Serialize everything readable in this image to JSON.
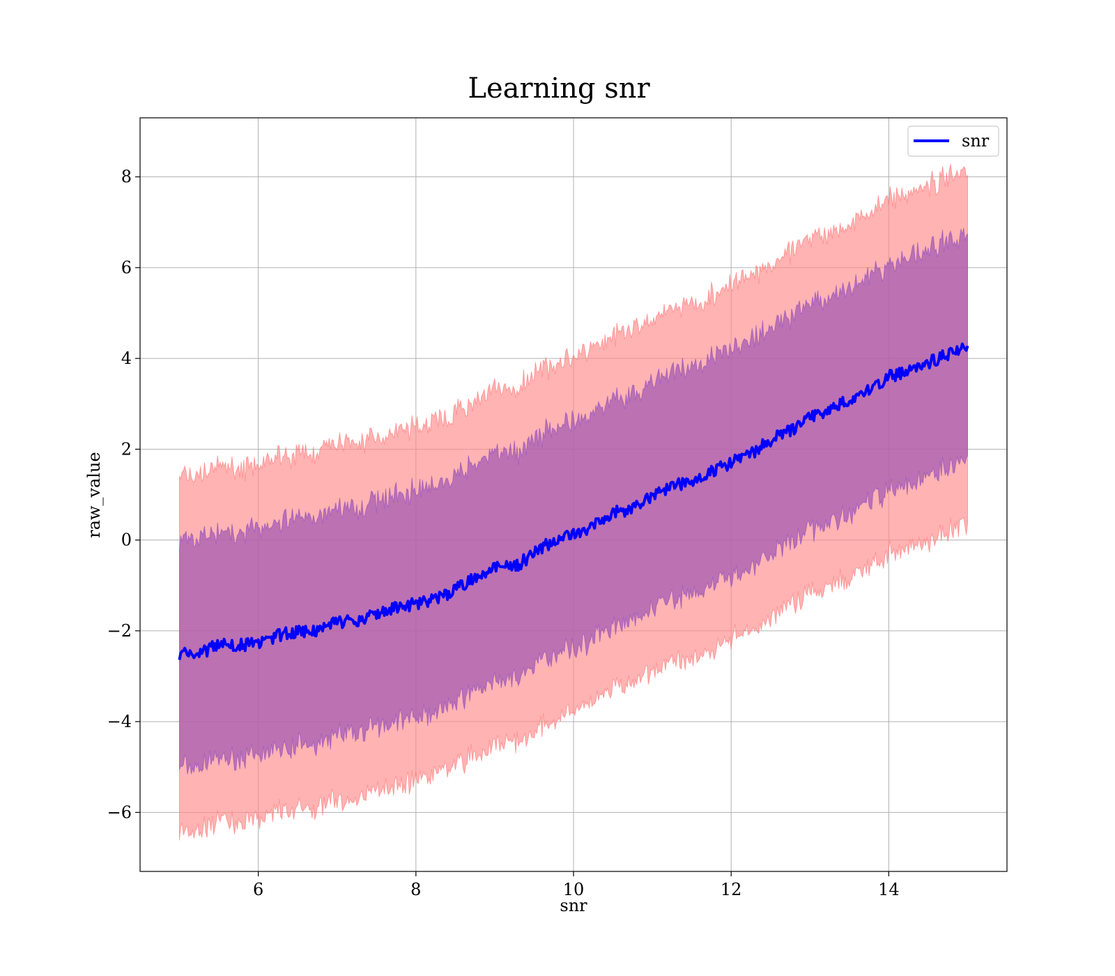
{
  "chart_data": {
    "type": "line",
    "title": "Learning snr",
    "xlabel": "snr",
    "ylabel": "raw_value",
    "xlim": [
      4.5,
      15.5
    ],
    "ylim": [
      -7.3,
      9.3
    ],
    "x_ticks": [
      6,
      8,
      10,
      12,
      14
    ],
    "y_ticks": [
      -6,
      -4,
      -2,
      0,
      2,
      4,
      6,
      8
    ],
    "x_tick_labels": [
      "6",
      "8",
      "10",
      "12",
      "14"
    ],
    "y_tick_labels": [
      "−6",
      "−4",
      "−2",
      "0",
      "2",
      "4",
      "6",
      "8"
    ],
    "grid": true,
    "legend_position": "top-right",
    "colors": {
      "line": "#0000ff",
      "outer_band": "#ff8a8a",
      "inner_band": "#a055b4",
      "grid": "#b0b0b0"
    },
    "series": [
      {
        "name": "snr",
        "x": [
          5.0,
          5.25,
          5.5,
          5.75,
          6.0,
          6.25,
          6.5,
          6.75,
          7.0,
          7.25,
          7.5,
          7.75,
          8.0,
          8.25,
          8.5,
          8.75,
          9.0,
          9.25,
          9.5,
          9.75,
          10.0,
          10.25,
          10.5,
          10.75,
          11.0,
          11.25,
          11.5,
          11.75,
          12.0,
          12.25,
          12.5,
          12.75,
          13.0,
          13.25,
          13.5,
          13.75,
          14.0,
          14.25,
          14.5,
          14.75,
          15.0
        ],
        "y": [
          -2.5,
          -2.5,
          -2.3,
          -2.3,
          -2.3,
          -2.1,
          -2.0,
          -2.0,
          -1.8,
          -1.8,
          -1.6,
          -1.5,
          -1.4,
          -1.3,
          -1.1,
          -0.8,
          -0.6,
          -0.6,
          -0.3,
          0.0,
          0.1,
          0.3,
          0.6,
          0.7,
          1.0,
          1.2,
          1.3,
          1.5,
          1.7,
          1.9,
          2.2,
          2.4,
          2.7,
          2.9,
          3.1,
          3.3,
          3.6,
          3.7,
          3.9,
          4.1,
          4.3
        ],
        "inner_band_halfwidth": 2.5,
        "outer_band_halfwidth": 3.9
      }
    ],
    "legend": [
      "snr"
    ]
  }
}
